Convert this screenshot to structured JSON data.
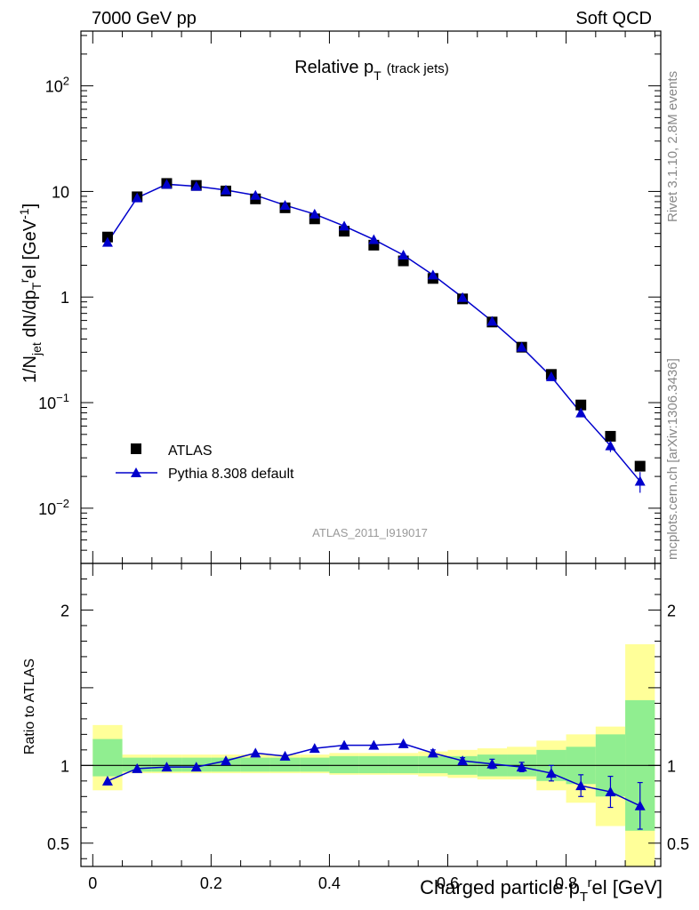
{
  "header": {
    "left": "7000 GeV pp",
    "right": "Soft QCD"
  },
  "title": {
    "main": "Relative p",
    "sub": "T",
    "suffix": "(track jets)"
  },
  "side_labels": {
    "rivet": "Rivet 3.1.10,  2.8M events",
    "mcplots": "mcplots.cern.ch [arXiv:1306.3436]"
  },
  "analysis_label": "ATLAS_2011_I919017",
  "axes": {
    "ylabel_main": "1/N_jet dN/dp_T^rel [GeV^-1]",
    "ylabel_ratio": "Ratio to ATLAS",
    "xlabel": "Charged particle p_T^rel [GeV]"
  },
  "legend": {
    "data_label": "ATLAS",
    "mc_label": "Pythia 8.308 default"
  },
  "chart_data": {
    "type": "line",
    "x": [
      0.025,
      0.075,
      0.125,
      0.175,
      0.225,
      0.275,
      0.325,
      0.375,
      0.425,
      0.475,
      0.525,
      0.575,
      0.625,
      0.675,
      0.725,
      0.775,
      0.825,
      0.875,
      0.925
    ],
    "xlim": [
      -0.02,
      0.96
    ],
    "ylim_main": [
      0.003,
      330
    ],
    "yscale_main": "log",
    "ylim_ratio": [
      0.35,
      2.3
    ],
    "x_ticks": [
      0,
      0.2,
      0.4,
      0.6,
      0.8
    ],
    "x_tick_labels": [
      "0",
      "0.2",
      "0.4",
      "0.6",
      "0.8"
    ],
    "y_ticks_main": [
      {
        "value": 0.01,
        "base": "10",
        "exp": "−2"
      },
      {
        "value": 0.1,
        "base": "10",
        "exp": "−1"
      },
      {
        "value": 1,
        "base": "1",
        "exp": ""
      },
      {
        "value": 10,
        "base": "10",
        "exp": ""
      },
      {
        "value": 100,
        "base": "10",
        "exp": "2"
      }
    ],
    "y_ticks_ratio": [
      0.5,
      1,
      2
    ],
    "y_tick_labels_ratio": [
      "0.5",
      "1",
      "2"
    ],
    "series": [
      {
        "name": "ATLAS",
        "color": "#000000",
        "marker": "square",
        "values": [
          3.7,
          8.9,
          11.9,
          11.4,
          10.1,
          8.5,
          7.0,
          5.5,
          4.2,
          3.1,
          2.2,
          1.5,
          0.96,
          0.58,
          0.335,
          0.185,
          0.095,
          0.048,
          0.025
        ]
      },
      {
        "name": "Pythia 8.308 default",
        "color": "#0000cc",
        "marker": "triangle",
        "values": [
          3.3,
          8.7,
          11.7,
          11.2,
          10.3,
          9.2,
          7.4,
          6.1,
          4.7,
          3.5,
          2.5,
          1.62,
          0.99,
          0.59,
          0.335,
          0.176,
          0.08,
          0.039,
          0.018
        ],
        "errors": [
          0,
          0,
          0,
          0,
          0,
          0,
          0,
          0,
          0,
          0,
          0,
          0,
          0,
          0,
          0,
          0,
          0.003,
          0.005,
          0.004
        ]
      }
    ],
    "ratio": {
      "values": [
        0.9,
        0.98,
        0.99,
        0.99,
        1.03,
        1.08,
        1.06,
        1.11,
        1.13,
        1.13,
        1.14,
        1.08,
        1.03,
        1.01,
        0.99,
        0.95,
        0.87,
        0.83,
        0.74
      ],
      "errors": [
        0,
        0,
        0,
        0,
        0,
        0,
        0,
        0,
        0,
        0,
        0,
        0.02,
        0.02,
        0.03,
        0.03,
        0.05,
        0.07,
        0.1,
        0.15
      ],
      "band_green_lo": [
        0.93,
        0.96,
        0.96,
        0.96,
        0.96,
        0.96,
        0.96,
        0.96,
        0.95,
        0.95,
        0.95,
        0.95,
        0.94,
        0.93,
        0.93,
        0.9,
        0.88,
        0.8,
        0.58
      ],
      "band_green_hi": [
        1.17,
        1.05,
        1.05,
        1.05,
        1.05,
        1.05,
        1.05,
        1.05,
        1.06,
        1.06,
        1.06,
        1.06,
        1.06,
        1.07,
        1.07,
        1.1,
        1.12,
        1.2,
        1.42
      ],
      "band_yellow_lo": [
        0.84,
        0.95,
        0.95,
        0.95,
        0.95,
        0.95,
        0.95,
        0.95,
        0.94,
        0.94,
        0.94,
        0.93,
        0.92,
        0.91,
        0.91,
        0.84,
        0.76,
        0.61,
        0.35
      ],
      "band_yellow_hi": [
        1.26,
        1.07,
        1.07,
        1.07,
        1.07,
        1.07,
        1.07,
        1.07,
        1.08,
        1.08,
        1.08,
        1.09,
        1.1,
        1.11,
        1.12,
        1.16,
        1.2,
        1.25,
        1.78
      ]
    },
    "colors": {
      "band_green": "#90ee90",
      "band_yellow": "#ffff99"
    }
  }
}
